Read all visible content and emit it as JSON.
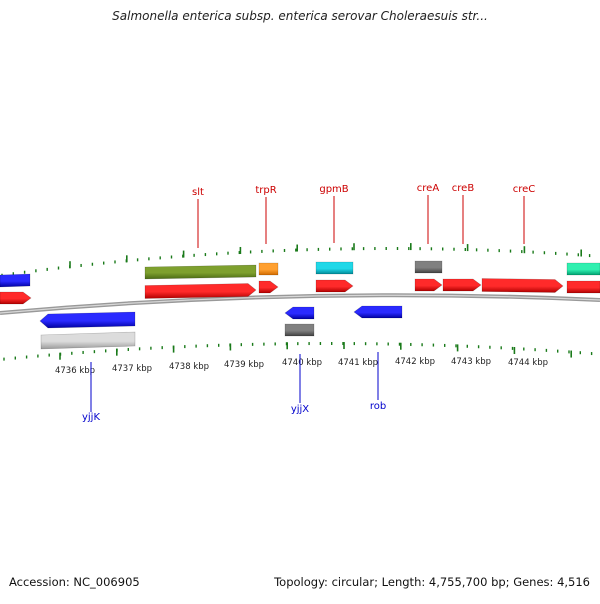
{
  "title": "Salmonella enterica subsp. enterica serovar Choleraesuis str...",
  "accession": "Accession: NC_006905",
  "summary": "Topology: circular; Length: 4,755,700 bp; Genes: 4,516",
  "colors": {
    "forward_gene": "#ff0000",
    "reverse_gene": "#0000ee",
    "rrna_like": "#2e8b57",
    "gene_olive": "#6b8e23",
    "gene_orange": "#ff8c00",
    "gene_cyan": "#00b5c8",
    "gene_gray": "#666666",
    "gene_lightgray": "#c0c0c0",
    "gene_teal": "#00e0a0",
    "tick": "#1a7a1a",
    "backbone": "#888888",
    "forward_label": "#cc0000",
    "reverse_label": "#0000cc"
  },
  "scale_labels": [
    {
      "kbp": 4736,
      "text": "4736 kbp"
    },
    {
      "kbp": 4737,
      "text": "4737 kbp"
    },
    {
      "kbp": 4738,
      "text": "4738 kbp"
    },
    {
      "kbp": 4739,
      "text": "4739 kbp"
    },
    {
      "kbp": 4740,
      "text": "4740 kbp"
    },
    {
      "kbp": 4741,
      "text": "4741 kbp"
    },
    {
      "kbp": 4742,
      "text": "4742 kbp"
    },
    {
      "kbp": 4743,
      "text": "4743 kbp"
    },
    {
      "kbp": 4744,
      "text": "4744 kbp"
    }
  ],
  "gene_labels": [
    {
      "text": "slt",
      "strand": "forward"
    },
    {
      "text": "trpR",
      "strand": "forward"
    },
    {
      "text": "gpmB",
      "strand": "forward"
    },
    {
      "text": "creA",
      "strand": "forward"
    },
    {
      "text": "creB",
      "strand": "forward"
    },
    {
      "text": "creC",
      "strand": "forward"
    },
    {
      "text": "yjjK",
      "strand": "reverse"
    },
    {
      "text": "yjjX",
      "strand": "reverse"
    },
    {
      "text": "rob",
      "strand": "reverse"
    }
  ]
}
